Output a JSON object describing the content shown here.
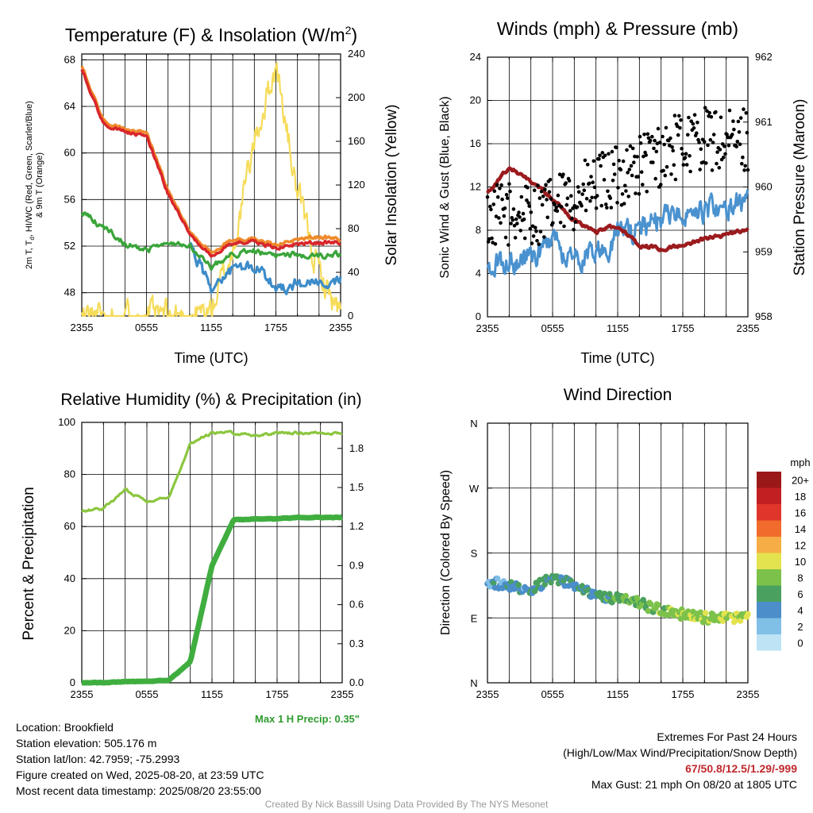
{
  "panels": {
    "temp": {
      "title_main": "Temperature (F) & Insolation (W/m",
      "title_sup": "2",
      "title_end": ")",
      "ylabel_left_lines": [
        "2m T, T",
        "d",
        ", HI/WC (Red, Green, Scarlet/Blue)",
        "& 9m T (Orange)"
      ],
      "ylabel_right": "Solar Insolation (Yellow)",
      "xlabel": "Time (UTC)",
      "yticks_left": [
        "48",
        "52",
        "56",
        "60",
        "64",
        "68"
      ],
      "yticks_right": [
        "0",
        "40",
        "80",
        "120",
        "160",
        "200",
        "240"
      ],
      "xticks": [
        "2355",
        "0555",
        "1155",
        "1755",
        "2355"
      ]
    },
    "wind": {
      "title": "Winds (mph) & Pressure (mb)",
      "ylabel_left": "Sonic Wind & Gust (Blue, Black)",
      "ylabel_right": "Station Pressure (Maroon)",
      "xlabel": "Time (UTC)",
      "yticks_left": [
        "0",
        "4",
        "8",
        "12",
        "16",
        "20",
        "24"
      ],
      "yticks_right": [
        "958",
        "959",
        "960",
        "961",
        "962"
      ],
      "xticks": [
        "2355",
        "0555",
        "1155",
        "1755",
        "2355"
      ]
    },
    "rh": {
      "title": "Relative Humidity (%) & Precipitation (in)",
      "ylabel_left": "Percent & Precipitation",
      "yticks_left": [
        "0",
        "20",
        "40",
        "60",
        "80",
        "100"
      ],
      "yticks_right": [
        "0.0",
        "0.3",
        "0.6",
        "0.9",
        "1.2",
        "1.5",
        "1.8"
      ],
      "xticks": [
        "2355",
        "0555",
        "1155",
        "1755",
        "2355"
      ],
      "annotation": "Max 1 H Precip: 0.35\""
    },
    "wdir": {
      "title": "Wind Direction",
      "ylabel_left": "Direction (Colored By Speed)",
      "yticks_left": [
        "N",
        "E",
        "S",
        "W",
        "N"
      ],
      "xticks": [
        "2355",
        "0555",
        "1155",
        "1755",
        "2355"
      ],
      "legend_title": "mph",
      "legend_labels": [
        "0",
        "2",
        "4",
        "6",
        "8",
        "10",
        "12",
        "14",
        "16",
        "18",
        "20+"
      ],
      "legend_colors": [
        "#bde3f5",
        "#80bfe6",
        "#4b8ec9",
        "#4aa05f",
        "#7cc24a",
        "#e3e34f",
        "#f7ad45",
        "#f06b2c",
        "#e0352a",
        "#c21f22",
        "#9b1818"
      ]
    }
  },
  "colors": {
    "temp": "#d8262b",
    "temp9m": "#f08a2b",
    "dewpoint": "#3aa53a",
    "windchill": "#3d8cc9",
    "solar": "#f6dc5a",
    "wind": "#4a92cf",
    "gust": "#000000",
    "pressure": "#9b1b1e",
    "rh": "#8cc63f",
    "precip": "#3fae3f",
    "annotation": "#2e9b2e"
  },
  "chart_data": [
    {
      "type": "line",
      "title": "Temperature (F) & Insolation (W/m2)",
      "xlabel": "Time (UTC)",
      "x": [
        "2355",
        "0155",
        "0355",
        "0555",
        "0755",
        "0955",
        "1155",
        "1355",
        "1555",
        "1755",
        "1955",
        "2155",
        "2355"
      ],
      "ylim_left": [
        46,
        68.5
      ],
      "ylim_right": [
        0,
        240
      ],
      "series": [
        {
          "name": "2m T",
          "values": [
            67.2,
            62.5,
            61.8,
            61.5,
            56.5,
            53.0,
            51.2,
            52.3,
            52.4,
            51.8,
            52.2,
            52.3,
            52.3
          ]
        },
        {
          "name": "9m T",
          "values": [
            67.5,
            62.8,
            62.0,
            61.8,
            56.8,
            53.2,
            51.5,
            52.6,
            52.6,
            52.1,
            52.6,
            52.8,
            52.6
          ]
        },
        {
          "name": "Td",
          "values": [
            55.0,
            53.6,
            52.2,
            51.6,
            52.2,
            52.2,
            50.2,
            51.3,
            51.6,
            51.1,
            51.3,
            51.0,
            51.3
          ]
        },
        {
          "name": "HI/WC",
          "values": [
            null,
            null,
            null,
            null,
            null,
            52.0,
            48.5,
            50.0,
            50.2,
            48.5,
            48.8,
            48.6,
            49.2
          ]
        },
        {
          "name": "Solar Insolation",
          "values": [
            0,
            0,
            0,
            0,
            0,
            0,
            5,
            60,
            160,
            230,
            110,
            40,
            0
          ]
        }
      ]
    },
    {
      "type": "line",
      "title": "Winds (mph) & Pressure (mb)",
      "xlabel": "Time (UTC)",
      "x": [
        "2355",
        "0155",
        "0355",
        "0555",
        "0755",
        "0955",
        "1155",
        "1355",
        "1555",
        "1755",
        "1955",
        "2155",
        "2355"
      ],
      "ylim_left": [
        0,
        24
      ],
      "ylim_right": [
        958,
        962
      ],
      "series": [
        {
          "name": "Sonic Wind",
          "values": [
            4.5,
            5.0,
            5.5,
            6.5,
            5.5,
            6.0,
            7.5,
            8.0,
            9.0,
            9.5,
            9.5,
            10.0,
            10.5
          ]
        },
        {
          "name": "Gust",
          "values": [
            9.0,
            9.5,
            9.5,
            10.0,
            11.0,
            12.0,
            13.0,
            14.0,
            15.0,
            16.0,
            16.5,
            16.0,
            16.5
          ]
        },
        {
          "name": "Station Pressure",
          "values": [
            959.9,
            960.3,
            960.1,
            959.8,
            959.5,
            959.3,
            959.4,
            959.1,
            959.05,
            959.1,
            959.2,
            959.25,
            959.35
          ]
        }
      ]
    },
    {
      "type": "line",
      "title": "Relative Humidity (%) & Precipitation (in)",
      "x": [
        "2355",
        "0155",
        "0355",
        "0555",
        "0755",
        "0955",
        "1155",
        "1355",
        "1555",
        "1755",
        "1955",
        "2155",
        "2355"
      ],
      "ylim_left": [
        0,
        100
      ],
      "ylim_right": [
        0.0,
        2.0
      ],
      "series": [
        {
          "name": "Relative Humidity",
          "values": [
            66,
            67,
            74,
            70,
            71,
            92,
            96,
            96,
            95,
            96,
            96,
            96,
            96
          ]
        },
        {
          "name": "Precipitation",
          "values": [
            0.0,
            0.0,
            0.01,
            0.01,
            0.02,
            0.16,
            0.9,
            1.25,
            1.26,
            1.26,
            1.27,
            1.27,
            1.27
          ]
        }
      ]
    },
    {
      "type": "scatter",
      "title": "Wind Direction",
      "x": [
        "2355",
        "0155",
        "0355",
        "0555",
        "0755",
        "0955",
        "1155",
        "1355",
        "1555",
        "1755",
        "1955",
        "2155",
        "2355"
      ],
      "ylim": [
        0,
        360
      ],
      "series": [
        {
          "name": "Direction",
          "values": [
            140,
            135,
            130,
            145,
            135,
            120,
            118,
            110,
            100,
            95,
            90,
            90,
            92
          ]
        }
      ]
    }
  ],
  "info": {
    "location": "Location: Brookfield",
    "elevation": "Station elevation: 505.176 m",
    "latlon": "Station lat/lon: 42.7959; -75.2993",
    "created": "Figure created on Wed, 2025-08-20, at 23:59 UTC",
    "recent": "Most recent data timestamp: 2025/08/20 23:55:00",
    "extremes_title": "Extremes For Past 24 Hours",
    "extremes_sub": "(High/Low/Max Wind/Precipitation/Snow Depth)",
    "extremes_values": "67/50.8/12.5/1.29/-999",
    "max_gust": "Max Gust: 21 mph On 08/20 at 1805 UTC",
    "credit": "Created By Nick Bassill Using Data Provided By The NYS Mesonet"
  }
}
